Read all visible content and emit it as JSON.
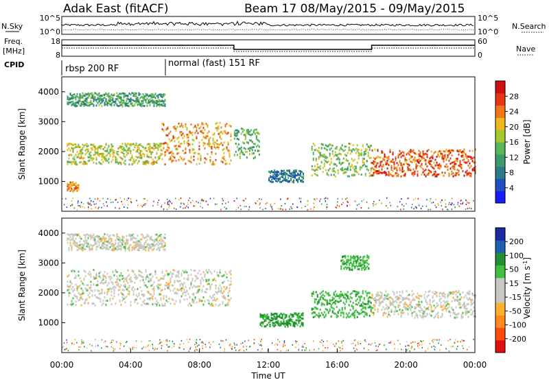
{
  "header": {
    "station": "Adak East (fitACF)",
    "beam_date": "Beam 17 08/May/2015 - 09/May/2015"
  },
  "left_labels": {
    "nsky": "N.Sky",
    "freq": "Freq.",
    "mhz": "[MHz]",
    "cpid": "CPID"
  },
  "right_labels": {
    "nsearch": "N.Search",
    "nave": "Nave"
  },
  "top_panel": {
    "left_ticks": [
      "10^5",
      "10^0"
    ],
    "right_ticks": [
      "10^5",
      "10^0"
    ]
  },
  "freq_panel": {
    "left_ticks": [
      "18",
      "8"
    ],
    "right_ticks": [
      "60",
      "0"
    ]
  },
  "cpid": {
    "seg1": "rbsp 200 RF",
    "seg2": "normal (fast) 151 RF"
  },
  "colors": {
    "power": [
      "#1a1aff",
      "#1f4fc0",
      "#2a7a8a",
      "#3f9a6a",
      "#58b55a",
      "#a8c830",
      "#f0b820",
      "#f07818",
      "#e63810",
      "#d01010"
    ],
    "velocity": [
      "#e01010",
      "#ff4a10",
      "#ff8a20",
      "#ffb030",
      "#c8c8c0",
      "#c8c8c0",
      "#40c040",
      "#209030",
      "#1f5fb0",
      "#1a2aa0"
    ]
  },
  "chart_data": [
    {
      "type": "heatmap",
      "name": "power",
      "xlabel": "",
      "ylabel": "Slant Range [km]",
      "x_range_hours": [
        0,
        24
      ],
      "ylim": [
        0,
        4500
      ],
      "y_ticks": [
        "4000",
        "3000",
        "2000",
        "1000"
      ],
      "colorbar": {
        "label": "Power [dB]",
        "ticks": [
          "28",
          "24",
          "20",
          "16",
          "12",
          "8",
          "4"
        ],
        "range": [
          0,
          32
        ]
      },
      "bands": [
        {
          "t0": 0.3,
          "t1": 6,
          "r0": 3550,
          "r1": 4000,
          "power": 12
        },
        {
          "t0": 0.3,
          "t1": 5.8,
          "r0": 1600,
          "r1": 2300,
          "power": 18
        },
        {
          "t0": 5.8,
          "t1": 9.8,
          "r0": 1600,
          "r1": 3000,
          "power": 22
        },
        {
          "t0": 10,
          "t1": 11.5,
          "r0": 1800,
          "r1": 2800,
          "power": 14
        },
        {
          "t0": 12,
          "t1": 14,
          "r0": 1000,
          "r1": 1400,
          "power": 8
        },
        {
          "t0": 14.5,
          "t1": 18,
          "r0": 1200,
          "r1": 2300,
          "power": 16
        },
        {
          "t0": 18,
          "t1": 24,
          "r0": 1200,
          "r1": 2100,
          "power": 26
        },
        {
          "t0": 0.3,
          "t1": 1,
          "r0": 700,
          "r1": 1000,
          "power": 24
        }
      ]
    },
    {
      "type": "heatmap",
      "name": "velocity",
      "xlabel": "Time UT",
      "ylabel": "Slant Range [km]",
      "x_range_hours": [
        0,
        24
      ],
      "x_ticks": [
        "00:00",
        "04:00",
        "08:00",
        "12:00",
        "16:00",
        "20:00",
        "00:00"
      ],
      "ylim": [
        0,
        4500
      ],
      "y_ticks": [
        "4000",
        "3000",
        "2000",
        "1000"
      ],
      "colorbar": {
        "label": "Velocity [m s^-1]",
        "ticks": [
          "200",
          "100",
          "50",
          "15",
          "-15",
          "-50",
          "-100",
          "-200"
        ]
      },
      "bands": [
        {
          "t0": 0.3,
          "t1": 6,
          "r0": 3450,
          "r1": 4000,
          "velocity": 0
        },
        {
          "t0": 0.3,
          "t1": 9.8,
          "r0": 1600,
          "r1": 2800,
          "velocity": 0
        },
        {
          "t0": 11.5,
          "t1": 14,
          "r0": 900,
          "r1": 1350,
          "velocity": 60
        },
        {
          "t0": 14.5,
          "t1": 18,
          "r0": 1200,
          "r1": 2100,
          "velocity": 40
        },
        {
          "t0": 16.2,
          "t1": 17.8,
          "r0": 2800,
          "r1": 3300,
          "velocity": 40
        },
        {
          "t0": 18,
          "t1": 24,
          "r0": 1200,
          "r1": 2100,
          "velocity": 0
        }
      ]
    }
  ]
}
